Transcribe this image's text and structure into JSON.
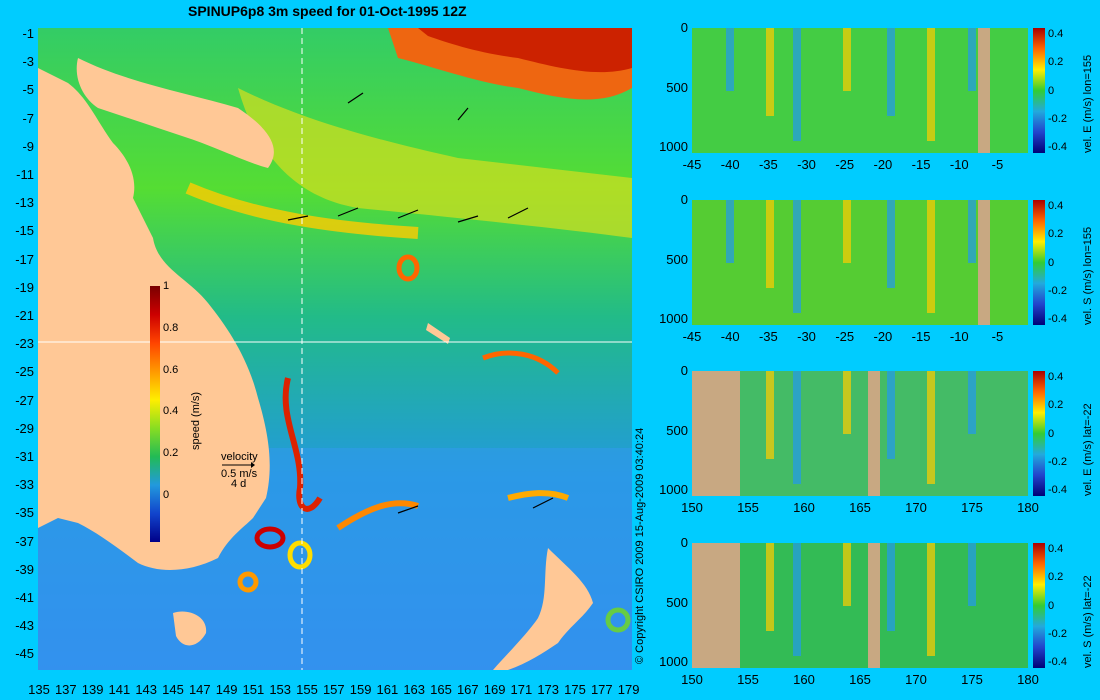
{
  "title": "SPINUP6p8 3m speed for 01-Oct-1995 12Z",
  "copyright": "© Copyright CSIRO 2009   15-Aug-2009 03:40:24",
  "colors": {
    "background": "#00ccff",
    "land": "#ffc896",
    "section_land": "#c8a882",
    "crosshair": "#ffffff"
  },
  "map": {
    "x_ticks": [
      "135",
      "137",
      "139",
      "141",
      "143",
      "145",
      "147",
      "149",
      "151",
      "153",
      "155",
      "157",
      "159",
      "161",
      "163",
      "165",
      "167",
      "169",
      "171",
      "173",
      "175",
      "177",
      "179"
    ],
    "y_ticks": [
      "-1",
      "-3",
      "-5",
      "-7",
      "-9",
      "-11",
      "-13",
      "-15",
      "-17",
      "-19",
      "-21",
      "-23",
      "-25",
      "-27",
      "-29",
      "-31",
      "-33",
      "-35",
      "-37",
      "-39",
      "-41",
      "-43",
      "-45"
    ],
    "crosshair_lon": 155,
    "crosshair_lat": -22,
    "speed_colorbar": {
      "label": "speed (m/s)",
      "ticks": [
        "1",
        "0.8",
        "0.6",
        "0.4",
        "0.2",
        "0"
      ]
    },
    "velocity_legend": {
      "title": "velocity",
      "scale": "0.5 m/s",
      "duration": "4 d"
    }
  },
  "sections": [
    {
      "name": "vel-e-lon155",
      "colorbar_label": "vel. E (m/s) lon=155",
      "x_ticks": [
        "-45",
        "-40",
        "-35",
        "-30",
        "-25",
        "-20",
        "-15",
        "-10",
        "-5"
      ],
      "y_ticks": [
        "0",
        "500",
        "1000"
      ],
      "cb_ticks": [
        "0.4",
        "0.2",
        "0",
        "-0.2",
        "-0.4"
      ]
    },
    {
      "name": "vel-s-lon155",
      "colorbar_label": "vel. S (m/s) lon=155",
      "x_ticks": [
        "-45",
        "-40",
        "-35",
        "-30",
        "-25",
        "-20",
        "-15",
        "-10",
        "-5"
      ],
      "y_ticks": [
        "0",
        "500",
        "1000"
      ],
      "cb_ticks": [
        "0.4",
        "0.2",
        "0",
        "-0.2",
        "-0.4"
      ]
    },
    {
      "name": "vel-e-lat-22",
      "colorbar_label": "vel. E (m/s) lat=-22",
      "x_ticks": [
        "150",
        "155",
        "160",
        "165",
        "170",
        "175",
        "180"
      ],
      "y_ticks": [
        "0",
        "500",
        "1000"
      ],
      "cb_ticks": [
        "0.4",
        "0.2",
        "0",
        "-0.2",
        "-0.4"
      ]
    },
    {
      "name": "vel-s-lat-22",
      "colorbar_label": "vel. S (m/s) lat=-22",
      "x_ticks": [
        "150",
        "155",
        "160",
        "165",
        "170",
        "175",
        "180"
      ],
      "y_ticks": [
        "0",
        "500",
        "1000"
      ],
      "cb_ticks": [
        "0.4",
        "0.2",
        "0",
        "-0.2",
        "-0.4"
      ]
    }
  ]
}
